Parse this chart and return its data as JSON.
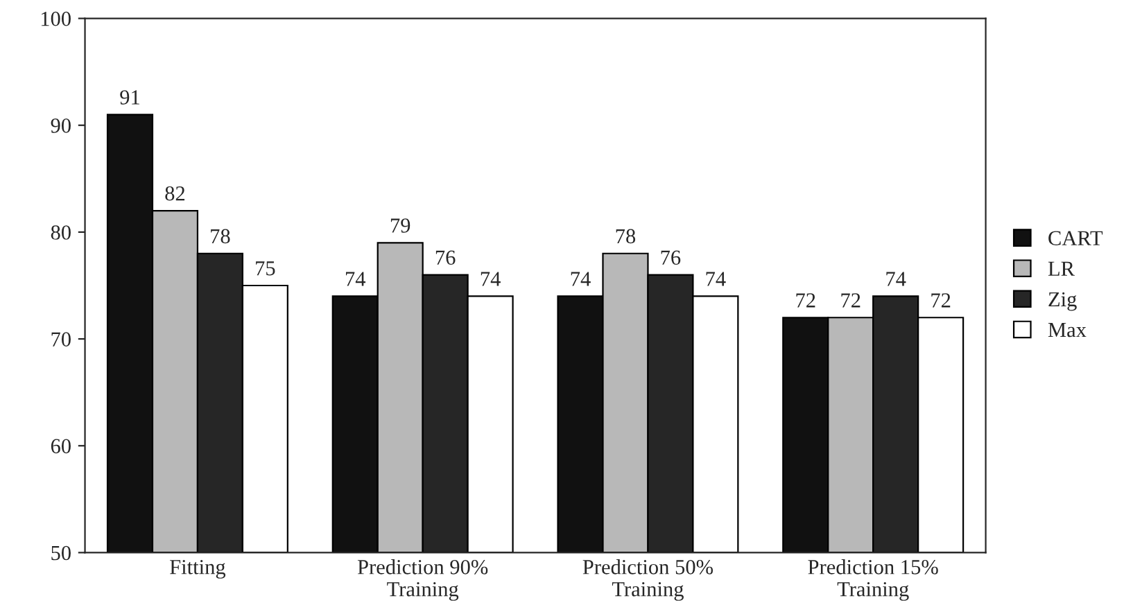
{
  "chart_data": {
    "type": "bar",
    "categories": [
      "Fitting",
      "Prediction 90%\nTraining",
      "Prediction 50%\nTraining",
      "Prediction 15%\nTraining"
    ],
    "series": [
      {
        "name": "CART",
        "color": "#111111",
        "values": [
          91,
          74,
          74,
          72
        ]
      },
      {
        "name": "LR",
        "color": "#b8b8b8",
        "values": [
          82,
          79,
          78,
          72
        ]
      },
      {
        "name": "Zig",
        "color": "#262626",
        "values": [
          78,
          76,
          76,
          74
        ]
      },
      {
        "name": "Max",
        "color": "#ffffff",
        "values": [
          75,
          74,
          74,
          72
        ]
      }
    ],
    "ylim": [
      50,
      100
    ],
    "yticks": [
      50,
      60,
      70,
      80,
      90,
      100
    ],
    "data_labels": true,
    "legend": "right",
    "grid": false
  }
}
